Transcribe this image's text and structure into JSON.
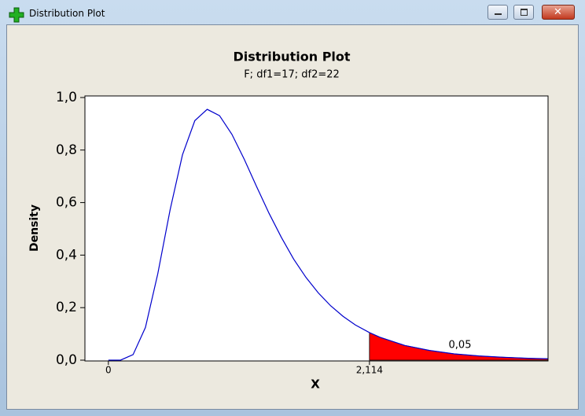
{
  "window": {
    "title": "Distribution Plot"
  },
  "chart_data": {
    "type": "line",
    "title": "Distribution Plot",
    "subtitle": "F; df1=17; df2=22",
    "x_label": "X",
    "y_label": "Density",
    "x": [
      0,
      0.1,
      0.2,
      0.3,
      0.4,
      0.5,
      0.6,
      0.7,
      0.8,
      0.9,
      1.0,
      1.1,
      1.2,
      1.3,
      1.4,
      1.5,
      1.6,
      1.7,
      1.8,
      1.9,
      2.0,
      2.114,
      2.2,
      2.4,
      2.6,
      2.8,
      3.0,
      3.2,
      3.4,
      3.56
    ],
    "values": [
      0,
      0.00045,
      0.0211,
      0.1246,
      0.329,
      0.573,
      0.782,
      0.912,
      0.955,
      0.931,
      0.86,
      0.765,
      0.661,
      0.56,
      0.468,
      0.385,
      0.315,
      0.256,
      0.207,
      0.167,
      0.134,
      0.105,
      0.087,
      0.056,
      0.037,
      0.024,
      0.016,
      0.011,
      0.0072,
      0.0053
    ],
    "color": "#0000cc",
    "xlim": [
      -0.19,
      3.56
    ],
    "ylim": [
      0,
      1.0
    ],
    "xticks": [
      0,
      {
        "value": 2.114,
        "label": "2,114"
      }
    ],
    "yticks": [
      {
        "value": 0,
        "label": "0,0"
      },
      {
        "value": 0.2,
        "label": "0,2"
      },
      {
        "value": 0.4,
        "label": "0,4"
      },
      {
        "value": 0.6,
        "label": "0,6"
      },
      {
        "value": 0.8,
        "label": "0,8"
      },
      {
        "value": 1.0,
        "label": "1,0"
      }
    ],
    "shaded": {
      "x_from": 2.114,
      "area": 0.05,
      "area_label": "0,05",
      "color": "#ff0000"
    }
  }
}
